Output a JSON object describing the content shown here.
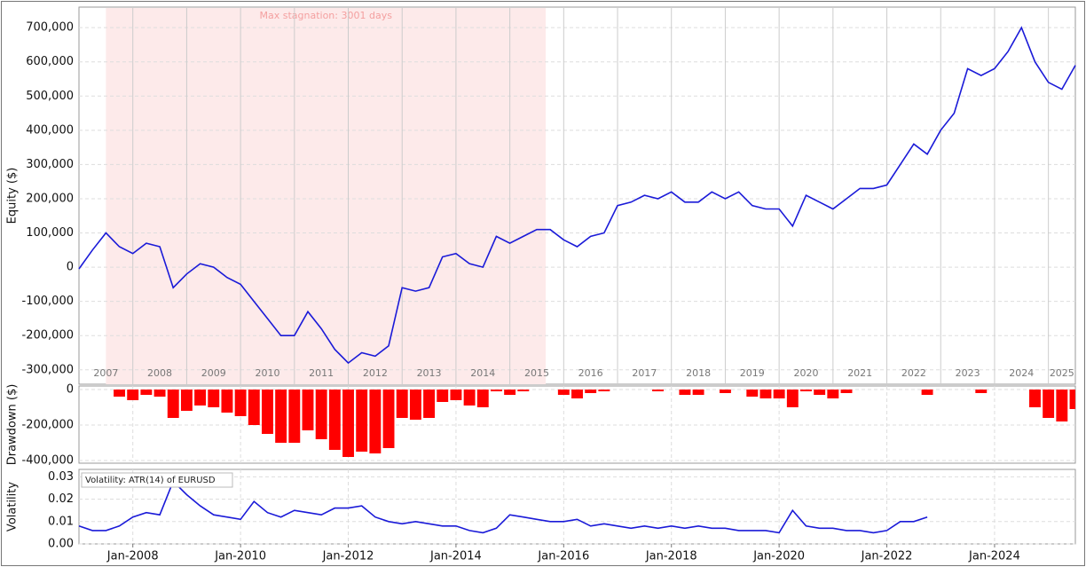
{
  "chart_data": [
    {
      "type": "line",
      "ylabel": "Equity ($)",
      "color": "#1a1ad8",
      "x": [
        "2007-01",
        "2007-04",
        "2007-07",
        "2007-10",
        "2008-01",
        "2008-04",
        "2008-07",
        "2008-10",
        "2009-01",
        "2009-04",
        "2009-07",
        "2009-10",
        "2010-01",
        "2010-04",
        "2010-07",
        "2010-10",
        "2011-01",
        "2011-04",
        "2011-07",
        "2011-10",
        "2012-01",
        "2012-04",
        "2012-07",
        "2012-10",
        "2013-01",
        "2013-04",
        "2013-07",
        "2013-10",
        "2014-01",
        "2014-04",
        "2014-07",
        "2014-10",
        "2015-01",
        "2015-04",
        "2015-07",
        "2015-10",
        "2016-01",
        "2016-04",
        "2016-07",
        "2016-10",
        "2017-01",
        "2017-04",
        "2017-07",
        "2017-10",
        "2018-01",
        "2018-04",
        "2018-07",
        "2018-10",
        "2019-01",
        "2019-04",
        "2019-07",
        "2019-10",
        "2020-01",
        "2020-04",
        "2020-07",
        "2020-10",
        "2021-01",
        "2021-04",
        "2021-07",
        "2021-10",
        "2022-01",
        "2022-04",
        "2022-07",
        "2022-10",
        "2023-01",
        "2023-04",
        "2023-07",
        "2023-10",
        "2024-01",
        "2024-04",
        "2024-07",
        "2024-10",
        "2025-01",
        "2025-04",
        "2025-07"
      ],
      "values": [
        -5000,
        50000,
        100000,
        60000,
        40000,
        70000,
        60000,
        -60000,
        -20000,
        10000,
        0,
        -30000,
        -50000,
        -100000,
        -150000,
        -200000,
        -200000,
        -130000,
        -180000,
        -240000,
        -280000,
        -250000,
        -260000,
        -230000,
        -60000,
        -70000,
        -60000,
        30000,
        40000,
        10000,
        0,
        90000,
        70000,
        90000,
        110000,
        110000,
        80000,
        60000,
        90000,
        100000,
        180000,
        190000,
        210000,
        200000,
        220000,
        190000,
        190000,
        220000,
        200000,
        220000,
        180000,
        170000,
        170000,
        120000,
        210000,
        190000,
        170000,
        200000,
        230000,
        230000,
        240000,
        300000,
        360000,
        330000,
        400000,
        450000,
        580000,
        560000,
        580000,
        630000,
        700000,
        600000,
        540000,
        520000,
        590000
      ],
      "xlim": [
        "2007-01",
        "2025-07"
      ],
      "ylim": [
        -342000,
        760000
      ],
      "yticks": [
        {
          "value": -300000,
          "label": "-300,000"
        },
        {
          "value": -200000,
          "label": "-200,000"
        },
        {
          "value": -100000,
          "label": "-100,000"
        },
        0,
        {
          "value": 100000,
          "label": "100,000"
        },
        {
          "value": 200000,
          "label": "200,000"
        },
        {
          "value": 300000,
          "label": "300,000"
        },
        {
          "value": 400000,
          "label": "400,000"
        },
        {
          "value": 500000,
          "label": "500,000"
        },
        {
          "value": 600000,
          "label": "600,000"
        },
        {
          "value": 700000,
          "label": "700,000"
        }
      ],
      "year_labels": [
        2007,
        2008,
        2009,
        2010,
        2011,
        2012,
        2013,
        2014,
        2015,
        2016,
        2017,
        2018,
        2019,
        2020,
        2021,
        2022,
        2023,
        2024,
        2025
      ],
      "shade": {
        "label": "Max stagnation: 3001 days",
        "x": [
          "2007-07",
          "2015-09"
        ],
        "color": "#fdeaea"
      },
      "grid": true
    },
    {
      "type": "bar",
      "ylabel": "Drawdown ($)",
      "color": "#ff0000",
      "x": [
        "2007-01",
        "2007-04",
        "2007-07",
        "2007-10",
        "2008-01",
        "2008-04",
        "2008-07",
        "2008-10",
        "2009-01",
        "2009-04",
        "2009-07",
        "2009-10",
        "2010-01",
        "2010-04",
        "2010-07",
        "2010-10",
        "2011-01",
        "2011-04",
        "2011-07",
        "2011-10",
        "2012-01",
        "2012-04",
        "2012-07",
        "2012-10",
        "2013-01",
        "2013-04",
        "2013-07",
        "2013-10",
        "2014-01",
        "2014-04",
        "2014-07",
        "2014-10",
        "2015-01",
        "2015-04",
        "2015-07",
        "2015-10",
        "2016-01",
        "2016-04",
        "2016-07",
        "2016-10",
        "2017-01",
        "2017-04",
        "2017-07",
        "2017-10",
        "2018-01",
        "2018-04",
        "2018-07",
        "2018-10",
        "2019-01",
        "2019-04",
        "2019-07",
        "2019-10",
        "2020-01",
        "2020-04",
        "2020-07",
        "2020-10",
        "2021-01",
        "2021-04",
        "2021-07",
        "2021-10",
        "2022-01",
        "2022-04",
        "2022-07",
        "2022-10",
        "2023-01",
        "2023-04",
        "2023-07",
        "2023-10",
        "2024-01",
        "2024-04",
        "2024-07",
        "2024-10",
        "2025-01",
        "2025-04",
        "2025-07"
      ],
      "values": [
        0,
        0,
        0,
        -40000,
        -60000,
        -30000,
        -40000,
        -160000,
        -120000,
        -90000,
        -100000,
        -130000,
        -150000,
        -200000,
        -250000,
        -300000,
        -300000,
        -230000,
        -280000,
        -340000,
        -380000,
        -350000,
        -360000,
        -330000,
        -160000,
        -170000,
        -160000,
        -70000,
        -60000,
        -90000,
        -100000,
        -10000,
        -30000,
        -10000,
        0,
        0,
        -30000,
        -50000,
        -20000,
        -10000,
        0,
        0,
        0,
        -10000,
        0,
        -30000,
        -30000,
        0,
        -20000,
        0,
        -40000,
        -50000,
        -50000,
        -100000,
        -10000,
        -30000,
        -50000,
        -20000,
        0,
        0,
        0,
        0,
        0,
        -30000,
        0,
        0,
        0,
        -20000,
        0,
        0,
        0,
        -100000,
        -160000,
        -180000,
        -110000
      ],
      "xlim": [
        "2007-01",
        "2025-07"
      ],
      "ylim": [
        -415000,
        20000
      ],
      "yticks": [
        {
          "value": -400000,
          "label": "-400,000"
        },
        {
          "value": -200000,
          "label": "-200,000"
        },
        0
      ],
      "grid": true
    },
    {
      "type": "line",
      "ylabel": "Volatility",
      "annotation": "Volatility: ATR(14) of EURUSD",
      "color": "#1a1ad8",
      "x": [
        "2007-01",
        "2007-04",
        "2007-07",
        "2007-10",
        "2008-01",
        "2008-04",
        "2008-07",
        "2008-10",
        "2009-01",
        "2009-04",
        "2009-07",
        "2009-10",
        "2010-01",
        "2010-04",
        "2010-07",
        "2010-10",
        "2011-01",
        "2011-04",
        "2011-07",
        "2011-10",
        "2012-01",
        "2012-04",
        "2012-07",
        "2012-10",
        "2013-01",
        "2013-04",
        "2013-07",
        "2013-10",
        "2014-01",
        "2014-04",
        "2014-07",
        "2014-10",
        "2015-01",
        "2015-04",
        "2015-07",
        "2015-10",
        "2016-01",
        "2016-04",
        "2016-07",
        "2016-10",
        "2017-01",
        "2017-04",
        "2017-07",
        "2017-10",
        "2018-01",
        "2018-04",
        "2018-07",
        "2018-10",
        "2019-01",
        "2019-04",
        "2019-07",
        "2019-10",
        "2020-01",
        "2020-04",
        "2020-07",
        "2020-10",
        "2021-01",
        "2021-04",
        "2021-07",
        "2021-10",
        "2022-01",
        "2022-04",
        "2022-07",
        "2022-10",
        "2023-01",
        "2023-04",
        "2023-07",
        "2023-10",
        "2024-01",
        "2024-04",
        "2024-07",
        "2024-10",
        "2025-01",
        "2025-04",
        "2025-07"
      ],
      "values": [
        0.008,
        0.006,
        0.006,
        0.008,
        0.012,
        0.014,
        0.013,
        0.028,
        0.022,
        0.017,
        0.013,
        0.012,
        0.011,
        0.019,
        0.014,
        0.012,
        0.015,
        0.014,
        0.013,
        0.016,
        0.016,
        0.017,
        0.012,
        0.01,
        0.009,
        0.01,
        0.009,
        0.008,
        0.008,
        0.006,
        0.005,
        0.007,
        0.013,
        0.012,
        0.011,
        0.01,
        0.01,
        0.011,
        0.008,
        0.009,
        0.008,
        0.007,
        0.008,
        0.007,
        0.008,
        0.007,
        0.008,
        0.007,
        0.007,
        0.006,
        0.006,
        0.006,
        0.005,
        0.015,
        0.008,
        0.007,
        0.007,
        0.006,
        0.006,
        0.005,
        0.006,
        0.01,
        0.01,
        0.012,
        null,
        null,
        null,
        null,
        null,
        null,
        null,
        null,
        null,
        null,
        null
      ],
      "xlim": [
        "2007-01",
        "2025-07"
      ],
      "ylim": [
        0,
        0.0333
      ],
      "yticks": [
        {
          "value": 0,
          "label": "0.00"
        },
        {
          "value": 0.01,
          "label": "0.01"
        },
        {
          "value": 0.02,
          "label": "0.02"
        },
        {
          "value": 0.03,
          "label": "0.03"
        }
      ],
      "xticks": [
        {
          "value": "2008-01",
          "label": "Jan-2008"
        },
        {
          "value": "2010-01",
          "label": "Jan-2010"
        },
        {
          "value": "2012-01",
          "label": "Jan-2012"
        },
        {
          "value": "2014-01",
          "label": "Jan-2014"
        },
        {
          "value": "2016-01",
          "label": "Jan-2016"
        },
        {
          "value": "2018-01",
          "label": "Jan-2018"
        },
        {
          "value": "2020-01",
          "label": "Jan-2020"
        },
        {
          "value": "2022-01",
          "label": "Jan-2022"
        },
        {
          "value": "2024-01",
          "label": "Jan-2024"
        }
      ],
      "grid": true
    }
  ]
}
